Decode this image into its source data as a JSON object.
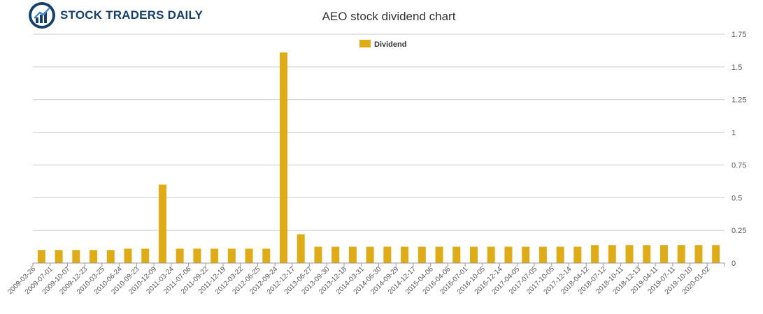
{
  "logo": {
    "text": "STOCK TRADERS DAILY"
  },
  "chart_data": {
    "type": "bar",
    "title": "AEO stock dividend chart",
    "xlabel": "",
    "ylabel": "",
    "legend": {
      "entries": [
        "Dividend"
      ],
      "placement": "top-center"
    },
    "grid": true,
    "ylim": [
      0,
      1.75
    ],
    "yticks": [
      "0",
      "0.25",
      "0.5",
      "0.75",
      "1",
      "1.25",
      "1.5",
      "1.75"
    ],
    "colors": {
      "bar": "#e0ac16",
      "grid": "#cccccc"
    },
    "categories": [
      "2009-03-26",
      "2009-07-01",
      "2009-10-07",
      "2009-12-23",
      "2010-03-25",
      "2010-06-24",
      "2010-09-23",
      "2010-12-09",
      "2011-03-24",
      "2011-07-06",
      "2011-09-22",
      "2011-12-19",
      "2012-03-22",
      "2012-06-25",
      "2012-09-24",
      "2012-12-17",
      "2013-06-27",
      "2013-09-30",
      "2013-12-18",
      "2014-03-31",
      "2014-06-30",
      "2014-09-29",
      "2014-12-17",
      "2015-04-06",
      "2016-04-06",
      "2016-07-01",
      "2016-10-05",
      "2016-12-14",
      "2017-04-05",
      "2017-07-05",
      "2017-10-05",
      "2017-12-14",
      "2018-04-12",
      "2018-07-12",
      "2018-10-11",
      "2018-12-13",
      "2019-04-11",
      "2019-07-11",
      "2019-10-10",
      "2020-01-02"
    ],
    "series": [
      {
        "name": "Dividend",
        "values": [
          0.1,
          0.1,
          0.1,
          0.1,
          0.1,
          0.11,
          0.11,
          0.6,
          0.11,
          0.11,
          0.11,
          0.11,
          0.11,
          0.11,
          1.61,
          0.22,
          0.125,
          0.125,
          0.125,
          0.125,
          0.125,
          0.125,
          0.125,
          0.125,
          0.125,
          0.125,
          0.125,
          0.125,
          0.125,
          0.125,
          0.125,
          0.125,
          0.1375,
          0.1375,
          0.1375,
          0.1375,
          0.1375,
          0.1375,
          0.1375,
          0.1375
        ]
      }
    ]
  }
}
